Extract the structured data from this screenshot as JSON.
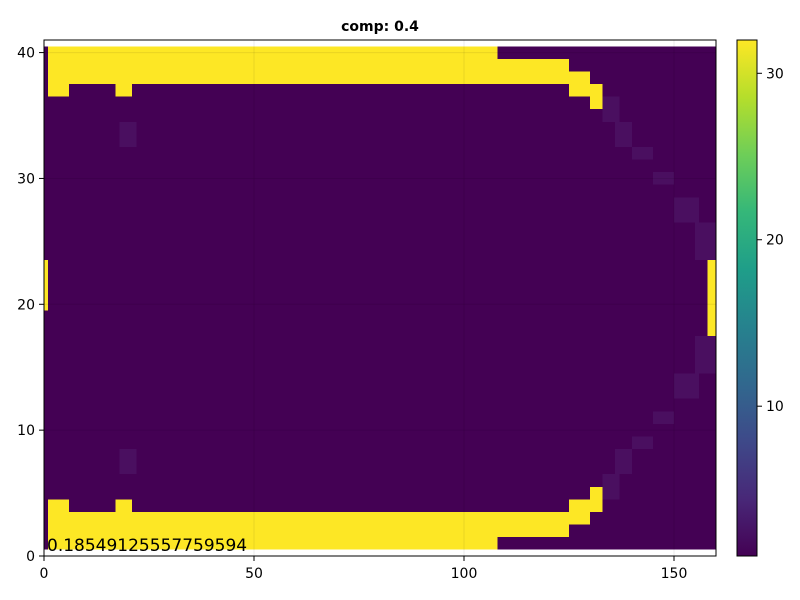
{
  "chart_data": {
    "type": "heatmap",
    "title": "comp: 0.4",
    "xlabel": "",
    "ylabel": "",
    "xlim": [
      0,
      160
    ],
    "ylim": [
      0,
      41
    ],
    "x_ticks": [
      0,
      50,
      100,
      150
    ],
    "y_ticks": [
      0,
      10,
      20,
      30,
      40
    ],
    "grid": true,
    "colormap": "viridis",
    "colorbar": {
      "limits": [
        1,
        32
      ],
      "ticks": [
        10,
        20,
        30
      ],
      "placement": "right"
    },
    "colors": {
      "low": "#440154",
      "faint": "#4a0f60",
      "high": "#fde725",
      "mid": "#21918c"
    },
    "annotation": "0.18549125557759594",
    "regions": [
      {
        "name": "background",
        "x": [
          0,
          160
        ],
        "y": [
          0.5,
          40.5
        ],
        "value": 1
      },
      {
        "name": "top-band",
        "x": [
          1,
          108
        ],
        "y": [
          37.5,
          40.5
        ],
        "value": 32
      },
      {
        "name": "top-band-step1",
        "x": [
          108,
          125
        ],
        "y": [
          37.5,
          39.5
        ],
        "value": 32
      },
      {
        "name": "top-band-step2",
        "x": [
          125,
          130
        ],
        "y": [
          36.5,
          38.5
        ],
        "value": 32
      },
      {
        "name": "top-band-step3",
        "x": [
          130,
          133
        ],
        "y": [
          35.5,
          37.5
        ],
        "value": 32
      },
      {
        "name": "top-notch-a",
        "x": [
          1,
          6
        ],
        "y": [
          36.5,
          37.5
        ],
        "value": 32
      },
      {
        "name": "top-notch-b",
        "x": [
          17,
          21
        ],
        "y": [
          36.5,
          37.5
        ],
        "value": 32
      },
      {
        "name": "bottom-band",
        "x": [
          1,
          108
        ],
        "y": [
          0.5,
          3.5
        ],
        "value": 32
      },
      {
        "name": "bottom-band-step1",
        "x": [
          108,
          125
        ],
        "y": [
          1.5,
          3.5
        ],
        "value": 32
      },
      {
        "name": "bottom-band-step2",
        "x": [
          125,
          130
        ],
        "y": [
          2.5,
          4.5
        ],
        "value": 32
      },
      {
        "name": "bottom-band-step3",
        "x": [
          130,
          133
        ],
        "y": [
          3.5,
          5.5
        ],
        "value": 32
      },
      {
        "name": "bottom-notch-a",
        "x": [
          1,
          6
        ],
        "y": [
          3.5,
          4.5
        ],
        "value": 32
      },
      {
        "name": "bottom-notch-b",
        "x": [
          17,
          21
        ],
        "y": [
          3.5,
          4.5
        ],
        "value": 32
      },
      {
        "name": "left-edge",
        "x": [
          0,
          1
        ],
        "y": [
          19.5,
          23.5
        ],
        "value": 32
      },
      {
        "name": "right-edge",
        "x": [
          158,
          160
        ],
        "y": [
          17.5,
          23.5
        ],
        "value": 32
      },
      {
        "name": "faint-patch-top",
        "x": [
          18,
          22
        ],
        "y": [
          32.5,
          34.5
        ],
        "value": 2
      },
      {
        "name": "faint-patch-bottom",
        "x": [
          18,
          22
        ],
        "y": [
          6.5,
          8.5
        ],
        "value": 2
      },
      {
        "name": "faint-arc-top-1",
        "x": [
          133,
          137
        ],
        "y": [
          34.5,
          36.5
        ],
        "value": 2
      },
      {
        "name": "faint-arc-top-2",
        "x": [
          136,
          140
        ],
        "y": [
          32.5,
          34.5
        ],
        "value": 2
      },
      {
        "name": "faint-arc-top-3",
        "x": [
          140,
          145
        ],
        "y": [
          31.5,
          32.5
        ],
        "value": 2
      },
      {
        "name": "faint-arc-top-4",
        "x": [
          145,
          150
        ],
        "y": [
          29.5,
          30.5
        ],
        "value": 2
      },
      {
        "name": "faint-arc-top-5",
        "x": [
          150,
          156
        ],
        "y": [
          26.5,
          28.5
        ],
        "value": 2
      },
      {
        "name": "faint-arc-top-6",
        "x": [
          155,
          160
        ],
        "y": [
          23.5,
          26.5
        ],
        "value": 2
      },
      {
        "name": "faint-arc-bottom-1",
        "x": [
          133,
          137
        ],
        "y": [
          4.5,
          6.5
        ],
        "value": 2
      },
      {
        "name": "faint-arc-bottom-2",
        "x": [
          136,
          140
        ],
        "y": [
          6.5,
          8.5
        ],
        "value": 2
      },
      {
        "name": "faint-arc-bottom-3",
        "x": [
          140,
          145
        ],
        "y": [
          8.5,
          9.5
        ],
        "value": 2
      },
      {
        "name": "faint-arc-bottom-4",
        "x": [
          145,
          150
        ],
        "y": [
          10.5,
          11.5
        ],
        "value": 2
      },
      {
        "name": "faint-arc-bottom-5",
        "x": [
          150,
          156
        ],
        "y": [
          12.5,
          14.5
        ],
        "value": 2
      },
      {
        "name": "faint-arc-bottom-6",
        "x": [
          155,
          160
        ],
        "y": [
          14.5,
          17.5
        ],
        "value": 2
      }
    ]
  }
}
